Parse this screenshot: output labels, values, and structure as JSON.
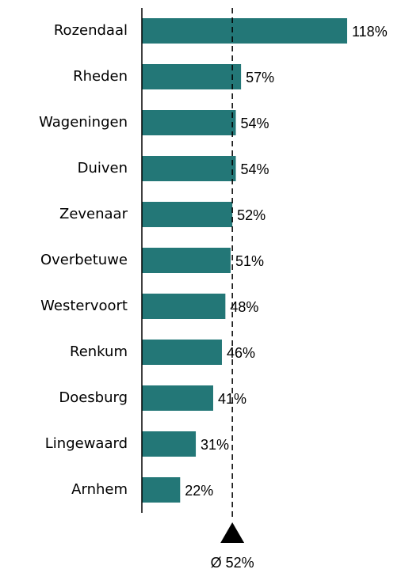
{
  "chart_data": {
    "type": "bar",
    "orientation": "horizontal",
    "categories": [
      "Rozendaal",
      "Rheden",
      "Wageningen",
      "Duiven",
      "Zevenaar",
      "Overbetuwe",
      "Westervoort",
      "Renkum",
      "Doesburg",
      "Lingewaard",
      "Arnhem"
    ],
    "values": [
      118,
      57,
      54,
      54,
      52,
      51,
      48,
      46,
      41,
      31,
      22
    ],
    "value_labels": [
      "118%",
      "57%",
      "54%",
      "54%",
      "52%",
      "51%",
      "48%",
      "46%",
      "41%",
      "31%",
      "22%"
    ],
    "color": "#237777",
    "average": 52,
    "average_label": "Ø 52%"
  }
}
